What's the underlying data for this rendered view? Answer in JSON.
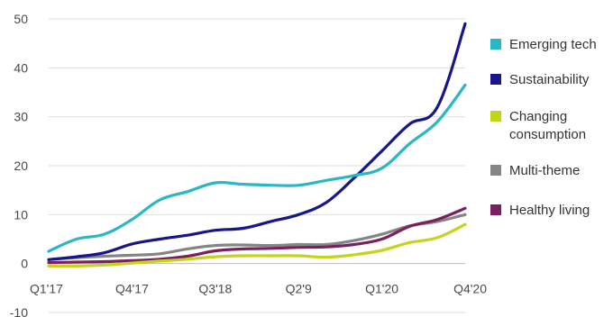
{
  "chart_data": {
    "type": "line",
    "x": [
      "Q1'17",
      "Q2'17",
      "Q3'17",
      "Q4'17",
      "Q1'18",
      "Q2'18",
      "Q3'18",
      "Q4'18",
      "Q1'19",
      "Q2'9",
      "Q3'19",
      "Q4'19",
      "Q1'20",
      "Q2'20",
      "Q3'20",
      "Q4'20"
    ],
    "x_tick_labels": [
      "Q1'17",
      "",
      "",
      "Q4'17",
      "",
      "",
      "Q3'18",
      "",
      "",
      "Q2'9",
      "",
      "",
      "Q1'20",
      "",
      "",
      "Q4'20"
    ],
    "ylim": [
      -10,
      50
    ],
    "y_ticks": [
      "-10",
      "0",
      "10",
      "20",
      "30",
      "40",
      "50"
    ],
    "grid": "horizontal",
    "legend_position": "right",
    "series": [
      {
        "name": "Emerging tech",
        "color": "#2ab7c5",
        "values": [
          2.5,
          5.0,
          6.0,
          9.0,
          13.0,
          14.7,
          16.5,
          16.2,
          16.0,
          16.0,
          17.0,
          18.0,
          19.5,
          24.5,
          29.0,
          36.5
        ]
      },
      {
        "name": "Sustainability",
        "color": "#15178a",
        "values": [
          0.8,
          1.4,
          2.2,
          4.0,
          5.0,
          5.8,
          6.8,
          7.2,
          8.6,
          10.0,
          12.5,
          17.5,
          23.0,
          28.5,
          32.0,
          49.0
        ]
      },
      {
        "name": "Changing consumption",
        "color": "#c3d51b",
        "values": [
          -0.5,
          -0.5,
          -0.3,
          0.1,
          0.5,
          0.9,
          1.4,
          1.6,
          1.6,
          1.6,
          1.3,
          1.8,
          2.7,
          4.3,
          5.3,
          8.0
        ]
      },
      {
        "name": "Multi-theme",
        "color": "#858585",
        "values": [
          0.8,
          1.2,
          1.5,
          1.7,
          2.0,
          3.0,
          3.7,
          3.8,
          3.7,
          3.9,
          3.9,
          4.7,
          6.0,
          7.7,
          8.6,
          10.0
        ]
      },
      {
        "name": "Healthy living",
        "color": "#7b1f5e",
        "values": [
          0.2,
          0.3,
          0.4,
          0.6,
          0.9,
          1.5,
          2.6,
          3.0,
          3.1,
          3.3,
          3.4,
          3.9,
          5.0,
          7.6,
          9.0,
          11.3
        ]
      }
    ]
  }
}
